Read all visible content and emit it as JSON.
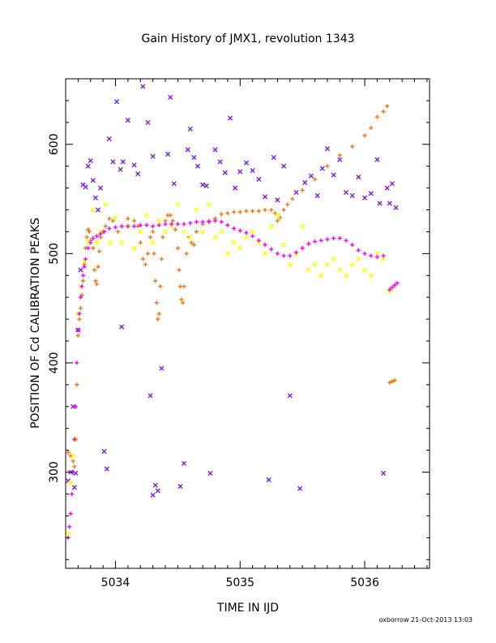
{
  "footer": "oxborrow 21-Oct-2013 13:03",
  "colors": {
    "purple": "#7a1cf0",
    "orange": "#f07810",
    "yellow": "#ffff00",
    "magenta": "#ff00ff"
  },
  "chart_data": {
    "type": "scatter",
    "title": "Gain History of JMX1, revolution 1343",
    "xlabel": "TIME IN IJD",
    "ylabel": "POSITION OF Cd CALIBRATION PEAKS",
    "xlim": [
      5033.6,
      5036.52
    ],
    "ylim": [
      212,
      660
    ],
    "xticks": [
      5034,
      5035,
      5036
    ],
    "xtick_labels": [
      "5034",
      "5035",
      "5036"
    ],
    "yticks": [
      300,
      400,
      500,
      600
    ],
    "ytick_labels": [
      "300",
      "400",
      "500",
      "600"
    ],
    "grid": false,
    "legend": "none",
    "series": [
      {
        "color": "purple",
        "marker": "x",
        "points": [
          [
            5033.62,
            292
          ],
          [
            5033.64,
            300
          ],
          [
            5033.66,
            360
          ],
          [
            5033.67,
            286
          ],
          [
            5033.68,
            299
          ],
          [
            5033.7,
            430
          ],
          [
            5033.72,
            485
          ],
          [
            5033.74,
            563
          ],
          [
            5033.76,
            561
          ],
          [
            5033.78,
            580
          ],
          [
            5033.8,
            585
          ],
          [
            5033.82,
            567
          ],
          [
            5033.84,
            551
          ],
          [
            5033.86,
            540
          ],
          [
            5033.88,
            560
          ],
          [
            5033.91,
            319
          ],
          [
            5033.93,
            303
          ],
          [
            5033.95,
            605
          ],
          [
            5033.98,
            584
          ],
          [
            5034.01,
            639
          ],
          [
            5034.04,
            577
          ],
          [
            5034.06,
            584
          ],
          [
            5034.05,
            433
          ],
          [
            5034.1,
            622
          ],
          [
            5034.15,
            581
          ],
          [
            5034.18,
            573
          ],
          [
            5034.22,
            653
          ],
          [
            5034.26,
            620
          ],
          [
            5034.3,
            589
          ],
          [
            5034.28,
            370
          ],
          [
            5034.3,
            279
          ],
          [
            5034.32,
            288
          ],
          [
            5034.34,
            283
          ],
          [
            5034.37,
            395
          ],
          [
            5034.42,
            591
          ],
          [
            5034.44,
            643
          ],
          [
            5034.47,
            564
          ],
          [
            5034.52,
            287
          ],
          [
            5034.55,
            308
          ],
          [
            5034.58,
            595
          ],
          [
            5034.6,
            614
          ],
          [
            5034.63,
            588
          ],
          [
            5034.66,
            580
          ],
          [
            5034.7,
            563
          ],
          [
            5034.73,
            562
          ],
          [
            5034.76,
            299
          ],
          [
            5034.8,
            595
          ],
          [
            5034.84,
            584
          ],
          [
            5034.88,
            574
          ],
          [
            5034.92,
            624
          ],
          [
            5034.96,
            560
          ],
          [
            5035.0,
            575
          ],
          [
            5035.05,
            583
          ],
          [
            5035.1,
            576
          ],
          [
            5035.15,
            568
          ],
          [
            5035.2,
            552
          ],
          [
            5035.23,
            293
          ],
          [
            5035.27,
            588
          ],
          [
            5035.3,
            549
          ],
          [
            5035.35,
            580
          ],
          [
            5035.4,
            370
          ],
          [
            5035.45,
            556
          ],
          [
            5035.48,
            285
          ],
          [
            5035.52,
            565
          ],
          [
            5035.57,
            571
          ],
          [
            5035.62,
            553
          ],
          [
            5035.66,
            578
          ],
          [
            5035.7,
            596
          ],
          [
            5035.75,
            572
          ],
          [
            5035.8,
            586
          ],
          [
            5035.85,
            556
          ],
          [
            5035.9,
            553
          ],
          [
            5035.95,
            570
          ],
          [
            5036.0,
            551
          ],
          [
            5036.05,
            555
          ],
          [
            5036.1,
            586
          ],
          [
            5036.12,
            546
          ],
          [
            5036.15,
            299
          ],
          [
            5036.18,
            560
          ],
          [
            5036.2,
            546
          ],
          [
            5036.22,
            564
          ],
          [
            5036.25,
            542
          ]
        ]
      },
      {
        "color": "orange",
        "marker": "+",
        "points": [
          [
            5033.62,
            318
          ],
          [
            5033.64,
            315
          ],
          [
            5033.66,
            310
          ],
          [
            5033.67,
            305
          ],
          [
            5033.68,
            330
          ],
          [
            5033.69,
            380
          ],
          [
            5033.7,
            425
          ],
          [
            5033.71,
            440
          ],
          [
            5033.72,
            450
          ],
          [
            5033.73,
            462
          ],
          [
            5033.74,
            475
          ],
          [
            5033.75,
            490
          ],
          [
            5033.76,
            505
          ],
          [
            5033.77,
            515
          ],
          [
            5033.78,
            522
          ],
          [
            5033.79,
            520
          ],
          [
            5033.8,
            512
          ],
          [
            5033.82,
            505
          ],
          [
            5033.83,
            485
          ],
          [
            5033.84,
            475
          ],
          [
            5033.85,
            472
          ],
          [
            5033.86,
            488
          ],
          [
            5033.87,
            502
          ],
          [
            5033.88,
            515
          ],
          [
            5033.9,
            520
          ],
          [
            5033.92,
            525
          ],
          [
            5033.95,
            532
          ],
          [
            5033.98,
            530
          ],
          [
            5034.02,
            520
          ],
          [
            5034.05,
            525
          ],
          [
            5034.1,
            532
          ],
          [
            5034.15,
            530
          ],
          [
            5034.18,
            525
          ],
          [
            5034.2,
            510
          ],
          [
            5034.22,
            495
          ],
          [
            5034.24,
            490
          ],
          [
            5034.26,
            500
          ],
          [
            5034.28,
            515
          ],
          [
            5034.3,
            520
          ],
          [
            5034.31,
            500
          ],
          [
            5034.32,
            475
          ],
          [
            5034.33,
            455
          ],
          [
            5034.34,
            440
          ],
          [
            5034.35,
            445
          ],
          [
            5034.36,
            470
          ],
          [
            5034.37,
            495
          ],
          [
            5034.38,
            515
          ],
          [
            5034.4,
            530
          ],
          [
            5034.42,
            535
          ],
          [
            5034.44,
            535
          ],
          [
            5034.46,
            530
          ],
          [
            5034.48,
            522
          ],
          [
            5034.5,
            505
          ],
          [
            5034.51,
            485
          ],
          [
            5034.52,
            470
          ],
          [
            5034.53,
            458
          ],
          [
            5034.54,
            455
          ],
          [
            5034.55,
            470
          ],
          [
            5034.57,
            500
          ],
          [
            5034.59,
            515
          ],
          [
            5034.61,
            510
          ],
          [
            5034.63,
            508
          ],
          [
            5034.65,
            520
          ],
          [
            5034.7,
            527
          ],
          [
            5034.75,
            530
          ],
          [
            5034.8,
            532
          ],
          [
            5034.85,
            536
          ],
          [
            5034.9,
            537
          ],
          [
            5034.95,
            538
          ],
          [
            5035.0,
            538
          ],
          [
            5035.05,
            539
          ],
          [
            5035.1,
            539
          ],
          [
            5035.15,
            539
          ],
          [
            5035.2,
            540
          ],
          [
            5035.25,
            540
          ],
          [
            5035.28,
            537
          ],
          [
            5035.3,
            530
          ],
          [
            5035.32,
            533
          ],
          [
            5035.35,
            540
          ],
          [
            5035.38,
            545
          ],
          [
            5035.42,
            550
          ],
          [
            5035.5,
            558
          ],
          [
            5035.6,
            568
          ],
          [
            5035.7,
            580
          ],
          [
            5035.8,
            590
          ],
          [
            5035.9,
            598
          ],
          [
            5036.0,
            608
          ],
          [
            5036.05,
            615
          ],
          [
            5036.1,
            625
          ],
          [
            5036.15,
            630
          ],
          [
            5036.18,
            635
          ],
          [
            5036.2,
            382
          ],
          [
            5036.22,
            383
          ],
          [
            5036.24,
            384
          ]
        ]
      },
      {
        "color": "yellow",
        "marker": "x",
        "points": [
          [
            5033.62,
            244
          ],
          [
            5033.64,
            290
          ],
          [
            5033.66,
            315
          ],
          [
            5033.68,
            330
          ],
          [
            5033.7,
            445
          ],
          [
            5033.72,
            470
          ],
          [
            5033.75,
            493
          ],
          [
            5033.78,
            510
          ],
          [
            5033.82,
            540
          ],
          [
            5033.85,
            510
          ],
          [
            5033.88,
            520
          ],
          [
            5033.92,
            545
          ],
          [
            5033.96,
            510
          ],
          [
            5034.0,
            533
          ],
          [
            5034.05,
            510
          ],
          [
            5034.1,
            525
          ],
          [
            5034.15,
            505
          ],
          [
            5034.2,
            520
          ],
          [
            5034.25,
            535
          ],
          [
            5034.3,
            510
          ],
          [
            5034.35,
            530
          ],
          [
            5034.4,
            520
          ],
          [
            5034.45,
            525
          ],
          [
            5034.5,
            545
          ],
          [
            5034.55,
            520
          ],
          [
            5034.6,
            515
          ],
          [
            5034.65,
            540
          ],
          [
            5034.7,
            520
          ],
          [
            5034.75,
            545
          ],
          [
            5034.8,
            515
          ],
          [
            5034.85,
            520
          ],
          [
            5034.9,
            500
          ],
          [
            5034.95,
            510
          ],
          [
            5035.0,
            505
          ],
          [
            5035.05,
            515
          ],
          [
            5035.1,
            520
          ],
          [
            5035.15,
            510
          ],
          [
            5035.2,
            500
          ],
          [
            5035.25,
            525
          ],
          [
            5035.3,
            535
          ],
          [
            5035.35,
            508
          ],
          [
            5035.4,
            490
          ],
          [
            5035.45,
            500
          ],
          [
            5035.5,
            525
          ],
          [
            5035.55,
            485
          ],
          [
            5035.6,
            490
          ],
          [
            5035.65,
            480
          ],
          [
            5035.7,
            490
          ],
          [
            5035.75,
            495
          ],
          [
            5035.8,
            485
          ],
          [
            5035.85,
            480
          ],
          [
            5035.9,
            490
          ],
          [
            5035.95,
            495
          ],
          [
            5036.0,
            485
          ],
          [
            5036.05,
            480
          ],
          [
            5036.1,
            500
          ],
          [
            5036.15,
            495
          ],
          [
            5036.2,
            465
          ],
          [
            5036.22,
            468
          ]
        ]
      },
      {
        "color": "magenta",
        "marker": "+",
        "points": [
          [
            5033.62,
            240
          ],
          [
            5033.63,
            250
          ],
          [
            5033.64,
            262
          ],
          [
            5033.65,
            280
          ],
          [
            5033.66,
            300
          ],
          [
            5033.67,
            330
          ],
          [
            5033.68,
            360
          ],
          [
            5033.69,
            400
          ],
          [
            5033.7,
            430
          ],
          [
            5033.71,
            445
          ],
          [
            5033.72,
            460
          ],
          [
            5033.73,
            470
          ],
          [
            5033.74,
            480
          ],
          [
            5033.75,
            488
          ],
          [
            5033.76,
            495
          ],
          [
            5033.78,
            505
          ],
          [
            5033.8,
            510
          ],
          [
            5033.82,
            514
          ],
          [
            5033.85,
            516
          ],
          [
            5033.88,
            518
          ],
          [
            5033.91,
            520
          ],
          [
            5033.95,
            523
          ],
          [
            5034.0,
            524
          ],
          [
            5034.05,
            525
          ],
          [
            5034.1,
            525
          ],
          [
            5034.15,
            525
          ],
          [
            5034.2,
            526
          ],
          [
            5034.25,
            526
          ],
          [
            5034.3,
            525
          ],
          [
            5034.35,
            526
          ],
          [
            5034.4,
            527
          ],
          [
            5034.45,
            527
          ],
          [
            5034.5,
            527
          ],
          [
            5034.55,
            527
          ],
          [
            5034.6,
            528
          ],
          [
            5034.65,
            529
          ],
          [
            5034.7,
            529
          ],
          [
            5034.75,
            529
          ],
          [
            5034.8,
            530
          ],
          [
            5034.85,
            529
          ],
          [
            5034.9,
            526
          ],
          [
            5034.95,
            523
          ],
          [
            5035.0,
            521
          ],
          [
            5035.05,
            519
          ],
          [
            5035.1,
            516
          ],
          [
            5035.15,
            512
          ],
          [
            5035.2,
            508
          ],
          [
            5035.25,
            504
          ],
          [
            5035.3,
            500
          ],
          [
            5035.35,
            498
          ],
          [
            5035.4,
            498
          ],
          [
            5035.45,
            501
          ],
          [
            5035.5,
            505
          ],
          [
            5035.55,
            509
          ],
          [
            5035.6,
            511
          ],
          [
            5035.65,
            512
          ],
          [
            5035.7,
            513
          ],
          [
            5035.75,
            514
          ],
          [
            5035.8,
            514
          ],
          [
            5035.85,
            512
          ],
          [
            5035.9,
            508
          ],
          [
            5035.95,
            503
          ],
          [
            5036.0,
            500
          ],
          [
            5036.05,
            498
          ],
          [
            5036.1,
            497
          ],
          [
            5036.15,
            498
          ],
          [
            5036.2,
            467
          ],
          [
            5036.22,
            469
          ],
          [
            5036.24,
            471
          ],
          [
            5036.26,
            473
          ]
        ]
      }
    ]
  }
}
